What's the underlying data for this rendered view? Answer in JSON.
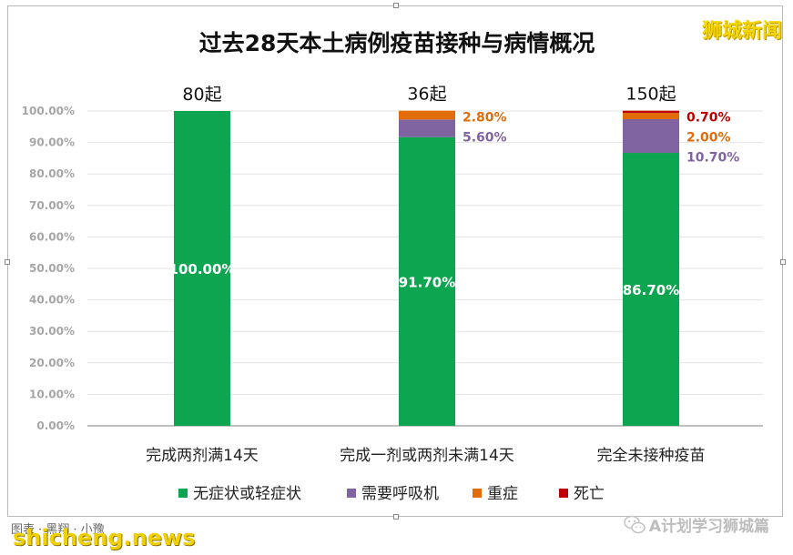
{
  "brand_label": "狮城新闻",
  "credit_label": "图表 · 黑翔 · 小豫",
  "watermark_label": "shicheng.news",
  "wechat_label": "A计划学习狮城篇",
  "chart_data": {
    "type": "bar",
    "stacked": true,
    "title": "过去28天本土病例疫苗接种与病情概况",
    "xlabel": "",
    "ylabel": "",
    "ylim": [
      0,
      100
    ],
    "y_ticks": [
      "0.00%",
      "10.00%",
      "20.00%",
      "30.00%",
      "40.00%",
      "50.00%",
      "60.00%",
      "70.00%",
      "80.00%",
      "90.00%",
      "100.00%"
    ],
    "grid": true,
    "legend_position": "bottom",
    "categories": [
      "完成两剂满14天",
      "完成一剂或两剂未满14天",
      "完全未接种疫苗"
    ],
    "totals": [
      "80起",
      "36起",
      "150起"
    ],
    "series": [
      {
        "name": "无症状或轻症状",
        "color": "#0ea550",
        "values": [
          100.0,
          91.7,
          86.7
        ],
        "labels": [
          "100.00%",
          "91.70%",
          "86.70%"
        ]
      },
      {
        "name": "需要呼吸机",
        "color": "#8064a2",
        "values": [
          0,
          5.6,
          10.7
        ],
        "labels": [
          "",
          "5.60%",
          "10.70%"
        ]
      },
      {
        "name": "重症",
        "color": "#e26b0a",
        "values": [
          0,
          2.8,
          2.0
        ],
        "labels": [
          "",
          "2.80%",
          "2.00%"
        ]
      },
      {
        "name": "死亡",
        "color": "#c00000",
        "values": [
          0,
          0,
          0.7
        ],
        "labels": [
          "",
          "",
          "0.70%"
        ]
      }
    ]
  }
}
